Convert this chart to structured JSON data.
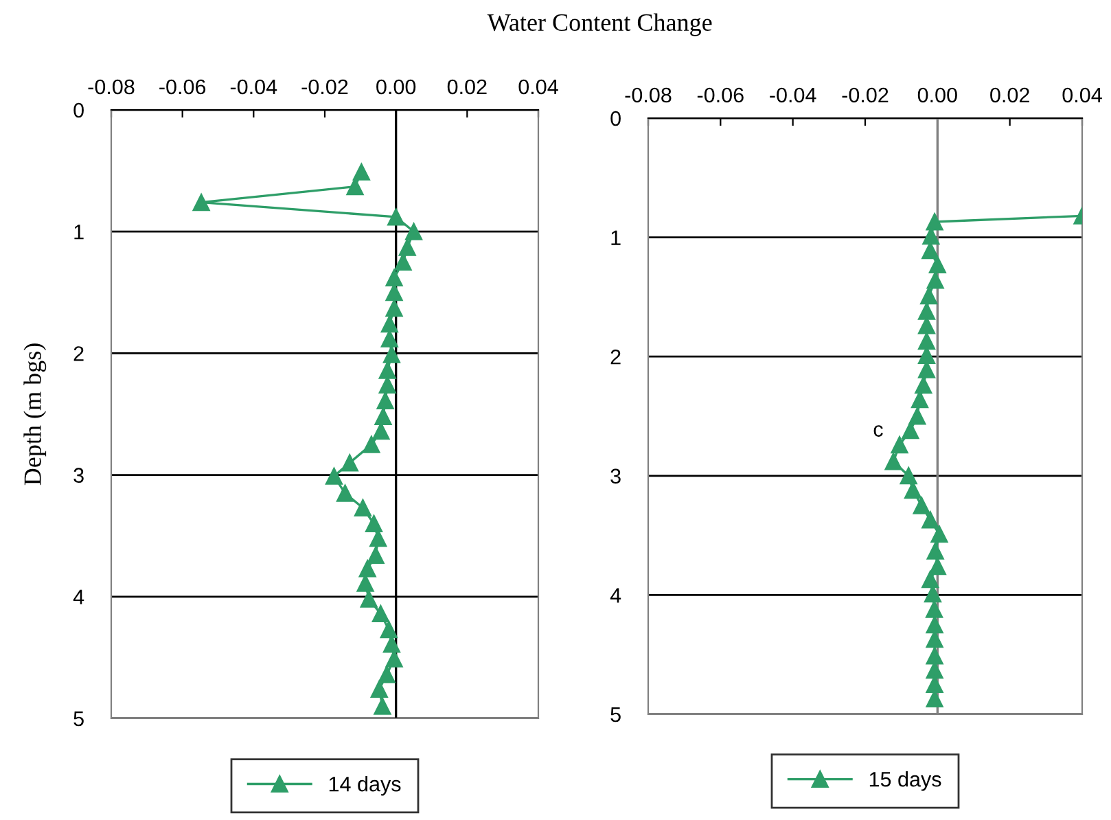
{
  "chart_data": [
    {
      "type": "line",
      "title": "Water Content Change",
      "ylabel": "Depth (m bgs)",
      "xlim": [
        -0.08,
        0.04
      ],
      "ylim": [
        5,
        0
      ],
      "xticks": [
        {
          "value": -0.08,
          "label": "-0.08"
        },
        {
          "value": -0.06,
          "label": "-0.06"
        },
        {
          "value": -0.04,
          "label": "-0.04"
        },
        {
          "value": -0.02,
          "label": "-0.02"
        },
        {
          "value": 0,
          "label": "0.00"
        },
        {
          "value": 0.02,
          "label": "0.02"
        },
        {
          "value": 0.04,
          "label": "0.04"
        }
      ],
      "yticks": [
        0,
        1,
        2,
        3,
        4,
        5
      ],
      "grid": "y",
      "legend": "bottom",
      "marker": "triangle",
      "line_style": "solid",
      "ref_lines": [
        {
          "axis": "x",
          "value": 0,
          "color": "#000000"
        }
      ],
      "series": [
        {
          "name": "14 days",
          "color": "#2e9e68",
          "x": [
            -0.0097,
            -0.0115,
            -0.0547,
            0,
            0.005,
            0.0032,
            0.002,
            -0.0005,
            -0.0005,
            -0.0005,
            -0.0018,
            -0.0018,
            -0.0012,
            -0.0024,
            -0.0024,
            -0.003,
            -0.0036,
            -0.0042,
            -0.0069,
            -0.013,
            -0.0174,
            -0.0143,
            -0.0093,
            -0.0062,
            -0.005,
            -0.0057,
            -0.008,
            -0.0086,
            -0.0076,
            -0.0043,
            -0.002,
            -0.0012,
            -0.0005,
            -0.0026,
            -0.0047,
            -0.0038
          ],
          "values": [
            0.51,
            0.63,
            0.76,
            0.88,
            1.0,
            1.13,
            1.25,
            1.38,
            1.5,
            1.63,
            1.76,
            1.88,
            2.01,
            2.14,
            2.26,
            2.39,
            2.52,
            2.64,
            2.75,
            2.9,
            3.01,
            3.15,
            3.27,
            3.4,
            3.52,
            3.66,
            3.77,
            3.89,
            4.02,
            4.14,
            4.27,
            4.39,
            4.51,
            4.64,
            4.76,
            4.9
          ]
        }
      ]
    },
    {
      "type": "line",
      "xlim": [
        -0.08,
        0.04
      ],
      "ylim": [
        5,
        0
      ],
      "xticks": [
        {
          "value": -0.08,
          "label": "-0.08"
        },
        {
          "value": -0.06,
          "label": "-0.06"
        },
        {
          "value": -0.04,
          "label": "-0.04"
        },
        {
          "value": -0.02,
          "label": "-0.02"
        },
        {
          "value": 0,
          "label": "0.00"
        },
        {
          "value": 0.02,
          "label": "0.02"
        },
        {
          "value": 0.04,
          "label": "0.04"
        }
      ],
      "yticks": [
        0,
        1,
        2,
        3,
        4,
        5
      ],
      "grid": "y",
      "legend": "bottom",
      "marker": "triangle",
      "line_style": "solid",
      "ref_lines": [
        {
          "axis": "x",
          "value": 0,
          "color": "#808080"
        }
      ],
      "annotations": [
        "c"
      ],
      "series": [
        {
          "name": "15 days",
          "color": "#2e9e68",
          "x": [
            0.04,
            -0.0008,
            -0.0018,
            -0.002,
            0,
            -0.0006,
            -0.0024,
            -0.003,
            -0.003,
            -0.003,
            -0.003,
            -0.003,
            -0.0039,
            -0.0049,
            -0.0056,
            -0.0075,
            -0.0105,
            -0.0122,
            -0.008,
            -0.0068,
            -0.0044,
            -0.002,
            0.0005,
            -0.0006,
            0,
            -0.002,
            -0.0013,
            -0.0009,
            -0.0008,
            -0.0008,
            -0.0008,
            -0.0008,
            -0.0008,
            -0.0008
          ],
          "values": [
            0.82,
            0.87,
            0.99,
            1.11,
            1.23,
            1.36,
            1.49,
            1.62,
            1.74,
            1.87,
            1.99,
            2.11,
            2.24,
            2.36,
            2.5,
            2.62,
            2.74,
            2.88,
            3.0,
            3.12,
            3.25,
            3.37,
            3.49,
            3.63,
            3.76,
            3.87,
            3.99,
            4.12,
            4.25,
            4.37,
            4.51,
            4.63,
            4.75,
            4.87
          ]
        }
      ]
    }
  ]
}
